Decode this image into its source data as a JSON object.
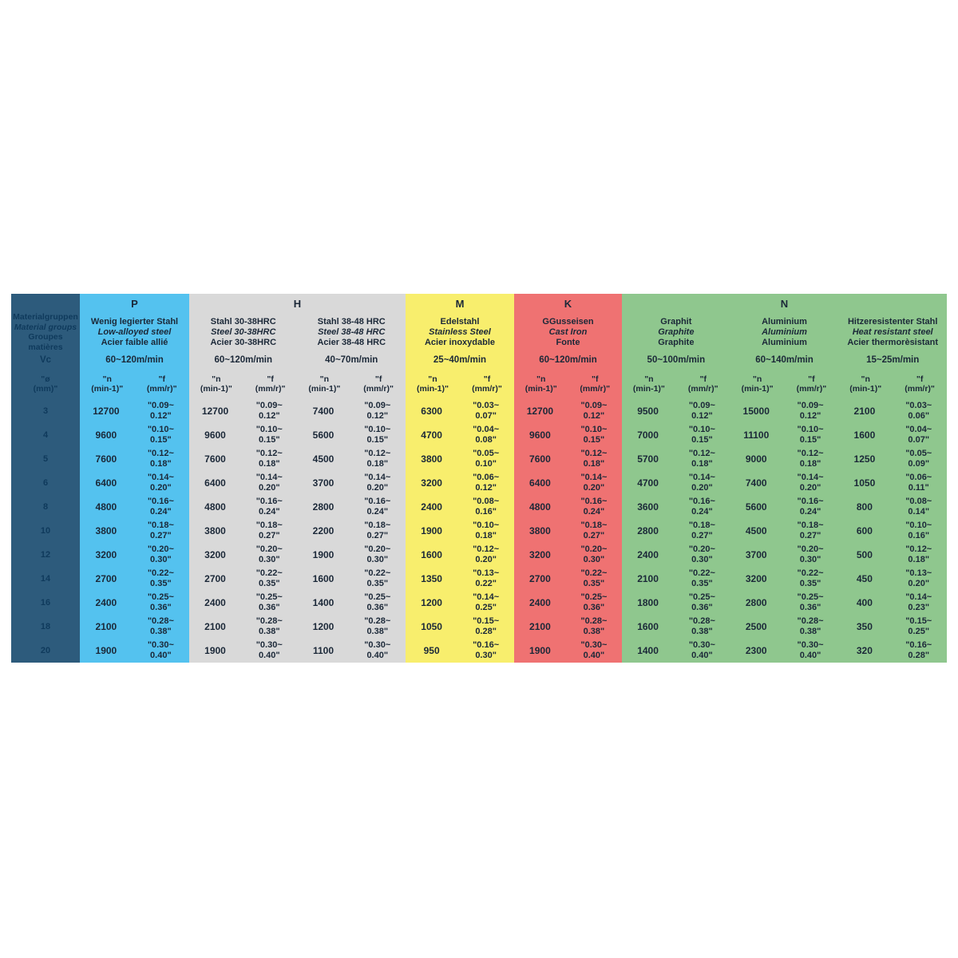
{
  "colors": {
    "label_bg": "#2d5b7c",
    "label_text": "#0f3a5c",
    "data_text": "#1b2838",
    "p_blue": "#54c2ef",
    "h_gray": "#d9d9d9",
    "m_yellow": "#f8ee6d",
    "k_red": "#ef7272",
    "n_green": "#8fc78e"
  },
  "table": {
    "row_header": {
      "title_de": "Materialgruppen",
      "title_en": "Material groups",
      "title_fr": "Groupes matières",
      "vc_label": "Vc",
      "dia_line1": "\"ø",
      "dia_line2": "(mm)\""
    },
    "col_headers": {
      "n1": "\"n",
      "n2": "(min-1)\"",
      "f1": "\"f",
      "f2": "(mm/r)\""
    },
    "diameters": [
      3,
      4,
      5,
      6,
      8,
      10,
      12,
      14,
      16,
      18,
      20
    ],
    "groups": [
      {
        "code": "P",
        "color": "#54c2ef",
        "materials": [
          {
            "name_lines": [
              "Wenig legierter Stahl",
              "Low-alloyed steel",
              "Acier faible allié"
            ],
            "vc": "60~120m/min",
            "n": [
              12700,
              9600,
              7600,
              6400,
              4800,
              3800,
              3200,
              2700,
              2400,
              2100,
              1900
            ],
            "f": [
              [
                "\"0.09~",
                "0.12\""
              ],
              [
                "\"0.10~",
                "0.15\""
              ],
              [
                "\"0.12~",
                "0.18\""
              ],
              [
                "\"0.14~",
                "0.20\""
              ],
              [
                "\"0.16~",
                "0.24\""
              ],
              [
                "\"0.18~",
                "0.27\""
              ],
              [
                "\"0.20~",
                "0.30\""
              ],
              [
                "\"0.22~",
                "0.35\""
              ],
              [
                "\"0.25~",
                "0.36\""
              ],
              [
                "\"0.28~",
                "0.38\""
              ],
              [
                "\"0.30~",
                "0.40\""
              ]
            ]
          }
        ]
      },
      {
        "code": "H",
        "color": "#d9d9d9",
        "materials": [
          {
            "name_lines": [
              "Stahl 30-38HRC",
              "Steel 30-38HRC",
              "Acier 30-38HRC"
            ],
            "vc": "60~120m/min",
            "n": [
              12700,
              9600,
              7600,
              6400,
              4800,
              3800,
              3200,
              2700,
              2400,
              2100,
              1900
            ],
            "f": [
              [
                "\"0.09~",
                "0.12\""
              ],
              [
                "\"0.10~",
                "0.15\""
              ],
              [
                "\"0.12~",
                "0.18\""
              ],
              [
                "\"0.14~",
                "0.20\""
              ],
              [
                "\"0.16~",
                "0.24\""
              ],
              [
                "\"0.18~",
                "0.27\""
              ],
              [
                "\"0.20~",
                "0.30\""
              ],
              [
                "\"0.22~",
                "0.35\""
              ],
              [
                "\"0.25~",
                "0.36\""
              ],
              [
                "\"0.28~",
                "0.38\""
              ],
              [
                "\"0.30~",
                "0.40\""
              ]
            ]
          },
          {
            "name_lines": [
              "Stahl 38-48 HRC",
              "Steel 38-48 HRC",
              "Acier 38-48 HRC"
            ],
            "vc": "40~70m/min",
            "n": [
              7400,
              5600,
              4500,
              3700,
              2800,
              2200,
              1900,
              1600,
              1400,
              1200,
              1100
            ],
            "f": [
              [
                "\"0.09~",
                "0.12\""
              ],
              [
                "\"0.10~",
                "0.15\""
              ],
              [
                "\"0.12~",
                "0.18\""
              ],
              [
                "\"0.14~",
                "0.20\""
              ],
              [
                "\"0.16~",
                "0.24\""
              ],
              [
                "\"0.18~",
                "0.27\""
              ],
              [
                "\"0.20~",
                "0.30\""
              ],
              [
                "\"0.22~",
                "0.35\""
              ],
              [
                "\"0.25~",
                "0.36\""
              ],
              [
                "\"0.28~",
                "0.38\""
              ],
              [
                "\"0.30~",
                "0.40\""
              ]
            ]
          }
        ]
      },
      {
        "code": "M",
        "color": "#f8ee6d",
        "materials": [
          {
            "name_lines": [
              "Edelstahl",
              "Stainless Steel",
              "Acier inoxydable"
            ],
            "vc": "25~40m/min",
            "n": [
              6300,
              4700,
              3800,
              3200,
              2400,
              1900,
              1600,
              1350,
              1200,
              1050,
              950
            ],
            "f": [
              [
                "\"0.03~",
                "0.07\""
              ],
              [
                "\"0.04~",
                "0.08\""
              ],
              [
                "\"0.05~",
                "0.10\""
              ],
              [
                "\"0.06~",
                "0.12\""
              ],
              [
                "\"0.08~",
                "0.16\""
              ],
              [
                "\"0.10~",
                "0.18\""
              ],
              [
                "\"0.12~",
                "0.20\""
              ],
              [
                "\"0.13~",
                "0.22\""
              ],
              [
                "\"0.14~",
                "0.25\""
              ],
              [
                "\"0.15~",
                "0.28\""
              ],
              [
                "\"0.16~",
                "0.30\""
              ]
            ]
          }
        ]
      },
      {
        "code": "K",
        "color": "#ef7272",
        "materials": [
          {
            "name_lines": [
              "GGusseisen",
              "Cast Iron",
              "Fonte"
            ],
            "vc": "60~120m/min",
            "n": [
              12700,
              9600,
              7600,
              6400,
              4800,
              3800,
              3200,
              2700,
              2400,
              2100,
              1900
            ],
            "f": [
              [
                "\"0.09~",
                "0.12\""
              ],
              [
                "\"0.10~",
                "0.15\""
              ],
              [
                "\"0.12~",
                "0.18\""
              ],
              [
                "\"0.14~",
                "0.20\""
              ],
              [
                "\"0.16~",
                "0.24\""
              ],
              [
                "\"0.18~",
                "0.27\""
              ],
              [
                "\"0.20~",
                "0.30\""
              ],
              [
                "\"0.22~",
                "0.35\""
              ],
              [
                "\"0.25~",
                "0.36\""
              ],
              [
                "\"0.28~",
                "0.38\""
              ],
              [
                "\"0.30~",
                "0.40\""
              ]
            ]
          }
        ]
      },
      {
        "code": "N",
        "color": "#8fc78e",
        "materials": [
          {
            "name_lines": [
              "Graphit",
              "Graphite",
              "Graphite"
            ],
            "vc": "50~100m/min",
            "n": [
              9500,
              7000,
              5700,
              4700,
              3600,
              2800,
              2400,
              2100,
              1800,
              1600,
              1400
            ],
            "f": [
              [
                "\"0.09~",
                "0.12\""
              ],
              [
                "\"0.10~",
                "0.15\""
              ],
              [
                "\"0.12~",
                "0.18\""
              ],
              [
                "\"0.14~",
                "0.20\""
              ],
              [
                "\"0.16~",
                "0.24\""
              ],
              [
                "\"0.18~",
                "0.27\""
              ],
              [
                "\"0.20~",
                "0.30\""
              ],
              [
                "\"0.22~",
                "0.35\""
              ],
              [
                "\"0.25~",
                "0.36\""
              ],
              [
                "\"0.28~",
                "0.38\""
              ],
              [
                "\"0.30~",
                "0.40\""
              ]
            ]
          },
          {
            "name_lines": [
              "Aluminium",
              "Aluminium",
              "Aluminium"
            ],
            "vc": "60~140m/min",
            "n": [
              15000,
              11100,
              9000,
              7400,
              5600,
              4500,
              3700,
              3200,
              2800,
              2500,
              2300
            ],
            "f": [
              [
                "\"0.09~",
                "0.12\""
              ],
              [
                "\"0.10~",
                "0.15\""
              ],
              [
                "\"0.12~",
                "0.18\""
              ],
              [
                "\"0.14~",
                "0.20\""
              ],
              [
                "\"0.16~",
                "0.24\""
              ],
              [
                "\"0.18~",
                "0.27\""
              ],
              [
                "\"0.20~",
                "0.30\""
              ],
              [
                "\"0.22~",
                "0.35\""
              ],
              [
                "\"0.25~",
                "0.36\""
              ],
              [
                "\"0.28~",
                "0.38\""
              ],
              [
                "\"0.30~",
                "0.40\""
              ]
            ]
          },
          {
            "name_lines": [
              "Hitzeresistenter Stahl",
              "Heat resistant steel",
              "Acier thermorèsistant"
            ],
            "vc": "15~25m/min",
            "n": [
              2100,
              1600,
              1250,
              1050,
              800,
              600,
              500,
              450,
              400,
              350,
              320
            ],
            "f": [
              [
                "\"0.03~",
                "0.06\""
              ],
              [
                "\"0.04~",
                "0.07\""
              ],
              [
                "\"0.05~",
                "0.09\""
              ],
              [
                "\"0.06~",
                "0.11\""
              ],
              [
                "\"0.08~",
                "0.14\""
              ],
              [
                "\"0.10~",
                "0.16\""
              ],
              [
                "\"0.12~",
                "0.18\""
              ],
              [
                "\"0.13~",
                "0.20\""
              ],
              [
                "\"0.14~",
                "0.23\""
              ],
              [
                "\"0.15~",
                "0.25\""
              ],
              [
                "\"0.16~",
                "0.28\""
              ]
            ]
          }
        ]
      }
    ]
  }
}
